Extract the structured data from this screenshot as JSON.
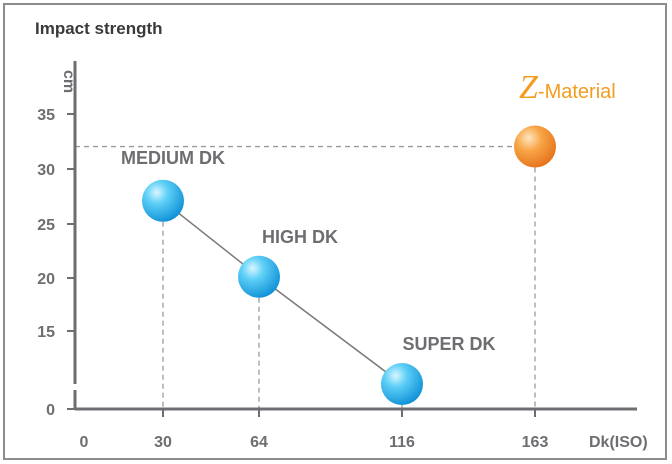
{
  "chart_data": {
    "type": "scatter",
    "title": "Impact strength",
    "ylabel": "cm",
    "xlabel": "Dk(ISO)",
    "x_ticks": [
      "0",
      "30",
      "64",
      "116",
      "163"
    ],
    "y_ticks": [
      "0",
      "15",
      "20",
      "25",
      "30",
      "35"
    ],
    "series": [
      {
        "points": [
          {
            "label": "MEDIUM DK",
            "x": 30,
            "y": 27
          },
          {
            "label": "HIGH DK",
            "x": 64,
            "y": 20
          },
          {
            "label": "SUPER DK",
            "x": 116,
            "y": 10
          }
        ],
        "connected": true,
        "color": "#2bb5ec"
      },
      {
        "name": "Z-Material",
        "name_letter": "Z",
        "name_suffix": "-Material",
        "points": [
          {
            "x": 163,
            "y": 32
          }
        ],
        "connected": false,
        "color": "#f28c1c"
      }
    ],
    "y_axis_break": true,
    "guide_lines": "dashed",
    "colors": {
      "axis": "#6d6e71",
      "text": "#6d6e71",
      "accent": "#f39c1f"
    }
  }
}
